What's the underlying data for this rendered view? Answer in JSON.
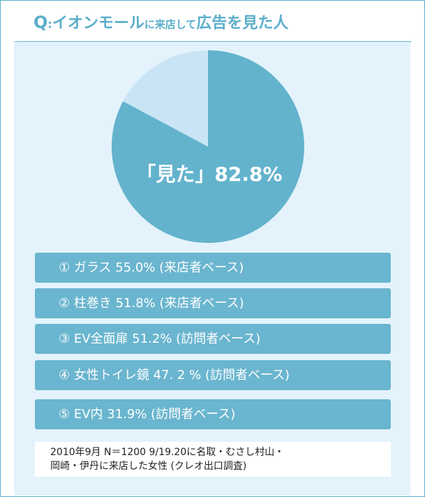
{
  "title": {
    "q": "Q",
    "colon": ":",
    "part1": "イオンモール",
    "part2": "に来店して",
    "part3": "広告を見た人"
  },
  "chart_data": {
    "type": "pie",
    "slices": [
      {
        "label": "見た",
        "value": 82.8,
        "color": "#63b3cd"
      },
      {
        "label": "",
        "value": 17.2,
        "color": "#c9e5f5"
      }
    ],
    "center_label": "「見た」82.8%"
  },
  "items": [
    "① ガラス 55.0% (来店者ベース)",
    "② 柱巻き 51.8% (来店者ベース)",
    "③ EV全面扉 51.2% (訪問者ベース)",
    "④ 女性トイレ鏡 47. 2 % (訪問者ベース)",
    "⑤ EV内 31.9% (訪問者ベース)"
  ],
  "note": {
    "line1": "2010年9月 N＝1200 9/19.20に名取・むさし村山・",
    "line2": "岡崎・伊丹に来店した女性 (クレオ出口調査)"
  }
}
